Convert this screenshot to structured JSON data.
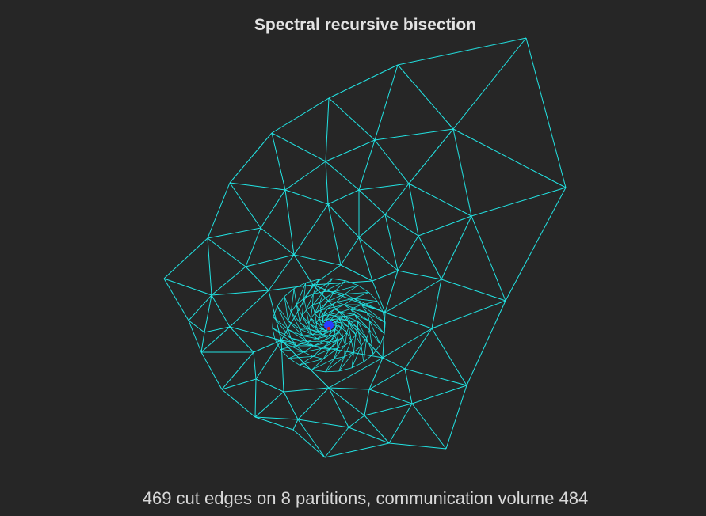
{
  "title": "Spectral recursive bisection",
  "footer": "469 cut edges on 8 partitions, communication volume 484",
  "colors": {
    "background": "#262626",
    "mesh_edge": "#22e3e3",
    "center_node": "#2a3cff",
    "center_dot": "#d02020"
  }
}
